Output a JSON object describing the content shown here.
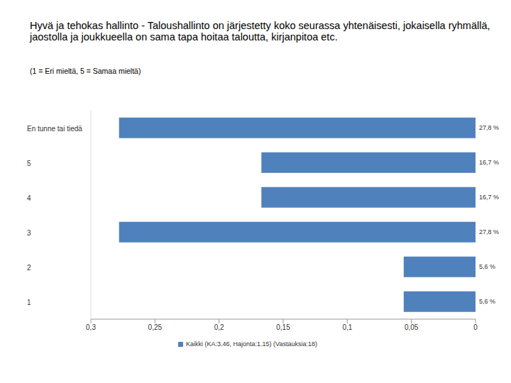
{
  "chart_data": {
    "type": "bar",
    "title": "Hyvä ja tehokas hallinto - Taloushallinto on järjestetty koko seurassa yhtenäisesti, jokaisella ryhmällä, jaostolla ja joukkueella on sama tapa hoitaa taloutta, kirjanpitoa etc.",
    "subtitle": "(1 = Eri mieltä, 5 = Samaa mieltä)",
    "orientation": "horizontal",
    "categories": [
      "En tunne tai tiedä",
      "5",
      "4",
      "3",
      "2",
      "1"
    ],
    "series": [
      {
        "name": "Kaikki (KA:3.46, Hajonta:1.15) (Vastauksia:18)",
        "color": "#4f81bd",
        "values": [
          0.278,
          0.167,
          0.167,
          0.278,
          0.056,
          0.056
        ],
        "value_labels": [
          "27,8 %",
          "16,7 %",
          "16,7 %",
          "27,8 %",
          "5,6 %",
          "5,6 %"
        ]
      }
    ],
    "xlim": [
      0,
      0.3
    ],
    "xticks": [
      {
        "value": 0.3,
        "label": "0,3"
      },
      {
        "value": 0.25,
        "label": "0,25"
      },
      {
        "value": 0.2,
        "label": "0,2"
      },
      {
        "value": 0.15,
        "label": "0,15"
      },
      {
        "value": 0.1,
        "label": "0,1"
      },
      {
        "value": 0.05,
        "label": "0,05"
      },
      {
        "value": 0,
        "label": "0"
      }
    ],
    "data_labels": true,
    "grid": false,
    "legend": "bottom"
  }
}
